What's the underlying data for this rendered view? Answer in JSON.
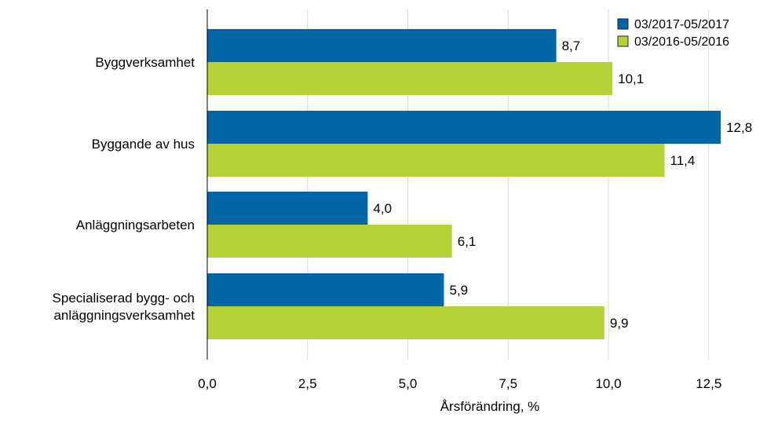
{
  "colors": {
    "series1": "#0066a6",
    "series2": "#b5d334",
    "grid": "#d8d8d8",
    "axis": "#000000"
  },
  "chart_data": {
    "type": "bar",
    "orientation": "horizontal",
    "categories": [
      [
        "Byggverksamhet"
      ],
      [
        "Byggande av hus"
      ],
      [
        "Anläggningsarbeten"
      ],
      [
        "Specialiserad bygg- och",
        "anläggningsverksamhet"
      ]
    ],
    "series": [
      {
        "name": "03/2017-05/2017",
        "values": [
          8.7,
          12.8,
          4.0,
          5.9
        ],
        "labels": [
          "8,7",
          "12,8",
          "4,0",
          "5,9"
        ]
      },
      {
        "name": "03/2016-05/2016",
        "values": [
          10.1,
          11.4,
          6.1,
          9.9
        ],
        "labels": [
          "10,1",
          "11,4",
          "6,1",
          "9,9"
        ]
      }
    ],
    "xlim": [
      0,
      13.5
    ],
    "xticks": [
      0,
      2.5,
      5.0,
      7.5,
      10.0,
      12.5
    ],
    "xtick_labels": [
      "0,0",
      "2,5",
      "5,0",
      "7,5",
      "10,0",
      "12,5"
    ],
    "xlabel": "Årsförändring, %",
    "ylabel": "",
    "title": "",
    "grid": true,
    "legend_position": "top-right"
  }
}
